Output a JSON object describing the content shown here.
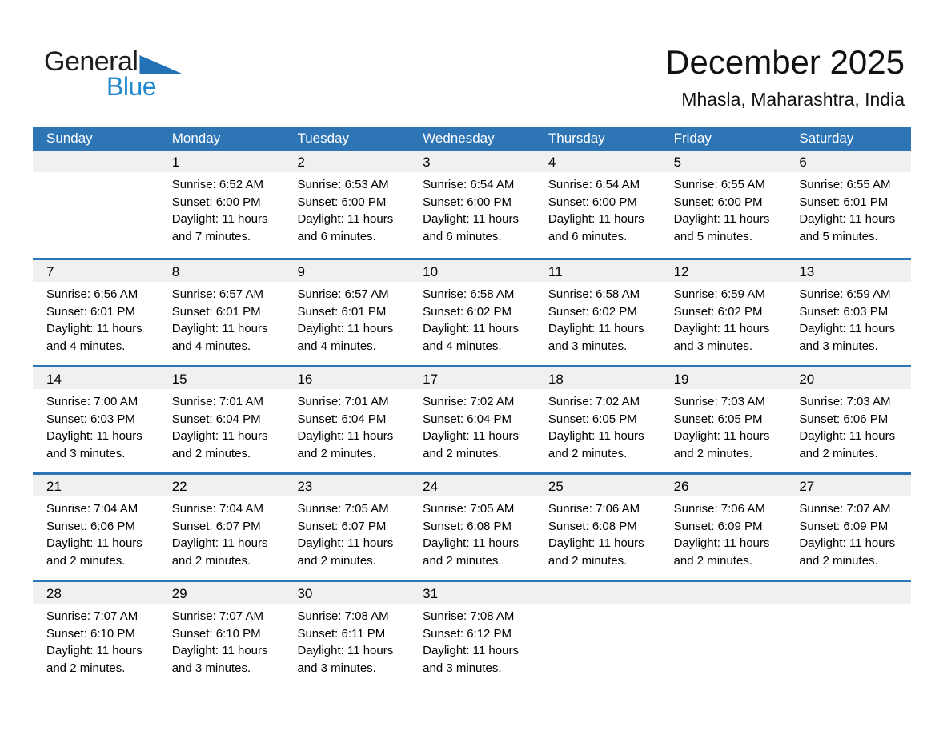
{
  "logo": {
    "general": "General",
    "blue": "Blue"
  },
  "header": {
    "title": "December 2025",
    "subtitle": "Mhasla, Maharashtra, India"
  },
  "labels": {
    "sunrise": "Sunrise: ",
    "sunset": "Sunset: ",
    "daylight": "Daylight: "
  },
  "colors": {
    "header_bar_bg": "#2E75B6",
    "week_divider": "#2E75B6",
    "day_band_bg": "#F0F0F1",
    "logo_text_blue": "#2189CE",
    "logo_triangle_blue": "#2372B8",
    "header_text": "#FFFFFF",
    "body_text": "#000000"
  },
  "weekdays": [
    "Sunday",
    "Monday",
    "Tuesday",
    "Wednesday",
    "Thursday",
    "Friday",
    "Saturday"
  ],
  "weeks": [
    [
      null,
      {
        "day": "1",
        "sunrise": "6:52 AM",
        "sunset": "6:00 PM",
        "daylight_line1": "11 hours",
        "daylight_line2": "and 7 minutes."
      },
      {
        "day": "2",
        "sunrise": "6:53 AM",
        "sunset": "6:00 PM",
        "daylight_line1": "11 hours",
        "daylight_line2": "and 6 minutes."
      },
      {
        "day": "3",
        "sunrise": "6:54 AM",
        "sunset": "6:00 PM",
        "daylight_line1": "11 hours",
        "daylight_line2": "and 6 minutes."
      },
      {
        "day": "4",
        "sunrise": "6:54 AM",
        "sunset": "6:00 PM",
        "daylight_line1": "11 hours",
        "daylight_line2": "and 6 minutes."
      },
      {
        "day": "5",
        "sunrise": "6:55 AM",
        "sunset": "6:00 PM",
        "daylight_line1": "11 hours",
        "daylight_line2": "and 5 minutes."
      },
      {
        "day": "6",
        "sunrise": "6:55 AM",
        "sunset": "6:01 PM",
        "daylight_line1": "11 hours",
        "daylight_line2": "and 5 minutes."
      }
    ],
    [
      {
        "day": "7",
        "sunrise": "6:56 AM",
        "sunset": "6:01 PM",
        "daylight_line1": "11 hours",
        "daylight_line2": "and 4 minutes."
      },
      {
        "day": "8",
        "sunrise": "6:57 AM",
        "sunset": "6:01 PM",
        "daylight_line1": "11 hours",
        "daylight_line2": "and 4 minutes."
      },
      {
        "day": "9",
        "sunrise": "6:57 AM",
        "sunset": "6:01 PM",
        "daylight_line1": "11 hours",
        "daylight_line2": "and 4 minutes."
      },
      {
        "day": "10",
        "sunrise": "6:58 AM",
        "sunset": "6:02 PM",
        "daylight_line1": "11 hours",
        "daylight_line2": "and 4 minutes."
      },
      {
        "day": "11",
        "sunrise": "6:58 AM",
        "sunset": "6:02 PM",
        "daylight_line1": "11 hours",
        "daylight_line2": "and 3 minutes."
      },
      {
        "day": "12",
        "sunrise": "6:59 AM",
        "sunset": "6:02 PM",
        "daylight_line1": "11 hours",
        "daylight_line2": "and 3 minutes."
      },
      {
        "day": "13",
        "sunrise": "6:59 AM",
        "sunset": "6:03 PM",
        "daylight_line1": "11 hours",
        "daylight_line2": "and 3 minutes."
      }
    ],
    [
      {
        "day": "14",
        "sunrise": "7:00 AM",
        "sunset": "6:03 PM",
        "daylight_line1": "11 hours",
        "daylight_line2": "and 3 minutes."
      },
      {
        "day": "15",
        "sunrise": "7:01 AM",
        "sunset": "6:04 PM",
        "daylight_line1": "11 hours",
        "daylight_line2": "and 2 minutes."
      },
      {
        "day": "16",
        "sunrise": "7:01 AM",
        "sunset": "6:04 PM",
        "daylight_line1": "11 hours",
        "daylight_line2": "and 2 minutes."
      },
      {
        "day": "17",
        "sunrise": "7:02 AM",
        "sunset": "6:04 PM",
        "daylight_line1": "11 hours",
        "daylight_line2": "and 2 minutes."
      },
      {
        "day": "18",
        "sunrise": "7:02 AM",
        "sunset": "6:05 PM",
        "daylight_line1": "11 hours",
        "daylight_line2": "and 2 minutes."
      },
      {
        "day": "19",
        "sunrise": "7:03 AM",
        "sunset": "6:05 PM",
        "daylight_line1": "11 hours",
        "daylight_line2": "and 2 minutes."
      },
      {
        "day": "20",
        "sunrise": "7:03 AM",
        "sunset": "6:06 PM",
        "daylight_line1": "11 hours",
        "daylight_line2": "and 2 minutes."
      }
    ],
    [
      {
        "day": "21",
        "sunrise": "7:04 AM",
        "sunset": "6:06 PM",
        "daylight_line1": "11 hours",
        "daylight_line2": "and 2 minutes."
      },
      {
        "day": "22",
        "sunrise": "7:04 AM",
        "sunset": "6:07 PM",
        "daylight_line1": "11 hours",
        "daylight_line2": "and 2 minutes."
      },
      {
        "day": "23",
        "sunrise": "7:05 AM",
        "sunset": "6:07 PM",
        "daylight_line1": "11 hours",
        "daylight_line2": "and 2 minutes."
      },
      {
        "day": "24",
        "sunrise": "7:05 AM",
        "sunset": "6:08 PM",
        "daylight_line1": "11 hours",
        "daylight_line2": "and 2 minutes."
      },
      {
        "day": "25",
        "sunrise": "7:06 AM",
        "sunset": "6:08 PM",
        "daylight_line1": "11 hours",
        "daylight_line2": "and 2 minutes."
      },
      {
        "day": "26",
        "sunrise": "7:06 AM",
        "sunset": "6:09 PM",
        "daylight_line1": "11 hours",
        "daylight_line2": "and 2 minutes."
      },
      {
        "day": "27",
        "sunrise": "7:07 AM",
        "sunset": "6:09 PM",
        "daylight_line1": "11 hours",
        "daylight_line2": "and 2 minutes."
      }
    ],
    [
      {
        "day": "28",
        "sunrise": "7:07 AM",
        "sunset": "6:10 PM",
        "daylight_line1": "11 hours",
        "daylight_line2": "and 2 minutes."
      },
      {
        "day": "29",
        "sunrise": "7:07 AM",
        "sunset": "6:10 PM",
        "daylight_line1": "11 hours",
        "daylight_line2": "and 3 minutes."
      },
      {
        "day": "30",
        "sunrise": "7:08 AM",
        "sunset": "6:11 PM",
        "daylight_line1": "11 hours",
        "daylight_line2": "and 3 minutes."
      },
      {
        "day": "31",
        "sunrise": "7:08 AM",
        "sunset": "6:12 PM",
        "daylight_line1": "11 hours",
        "daylight_line2": "and 3 minutes."
      },
      null,
      null,
      null
    ]
  ]
}
